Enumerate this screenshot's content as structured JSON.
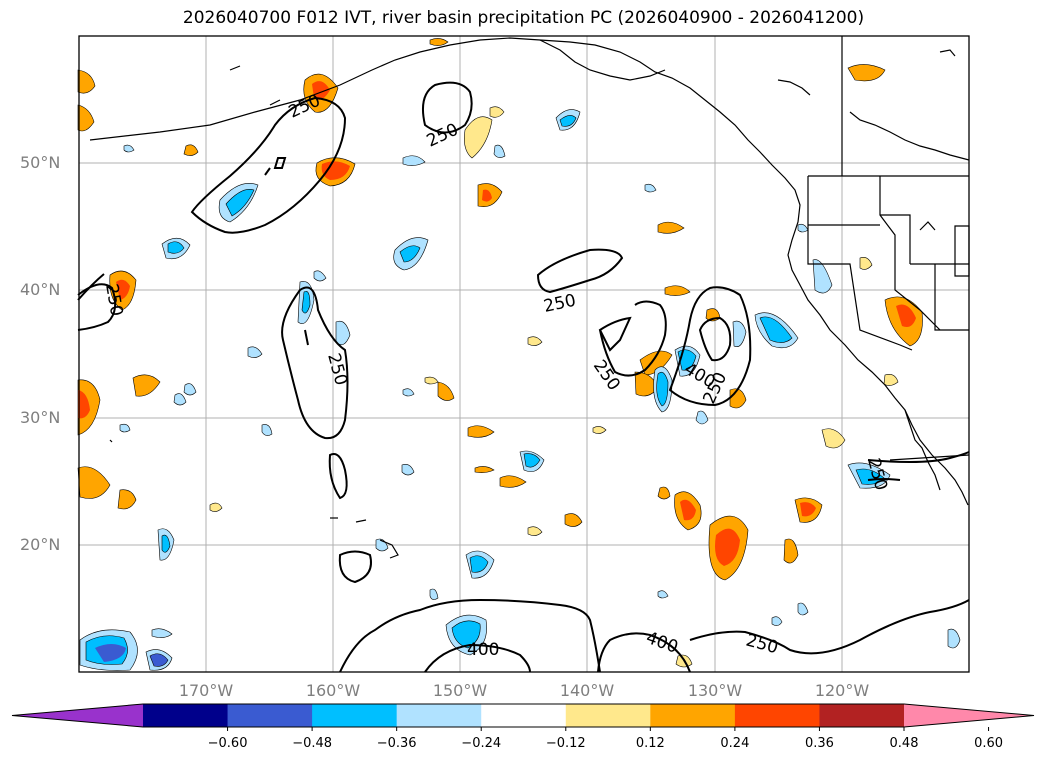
{
  "title": "2026040700 F012 IVT, river basin precipitation PC (2026040900 - 2026041200)",
  "map": {
    "latitude_labels": [
      "50°N",
      "40°N",
      "30°N",
      "20°N"
    ],
    "longitude_labels": [
      "170°W",
      "160°W",
      "150°W",
      "140°W",
      "130°W",
      "120°W"
    ],
    "contour_labels": [
      "250",
      "250",
      "250",
      "250",
      "250",
      "250",
      "400",
      "250",
      "250",
      "400",
      "400",
      "250"
    ],
    "land_outline_color": "#000000",
    "grid_color": "#b0b0b0"
  },
  "colorbar": {
    "ticks": [
      "−0.60",
      "−0.48",
      "−0.36",
      "−0.24",
      "−0.12",
      "0.12",
      "0.24",
      "0.36",
      "0.48",
      "0.60"
    ],
    "colors": [
      "#9932cc",
      "#00008b",
      "#3a5bd1",
      "#00bfff",
      "#b0e2ff",
      "#ffffff",
      "#ffe88c",
      "#ffa500",
      "#ff4500",
      "#b22222",
      "#ff88aa"
    ],
    "extend": "both"
  }
}
